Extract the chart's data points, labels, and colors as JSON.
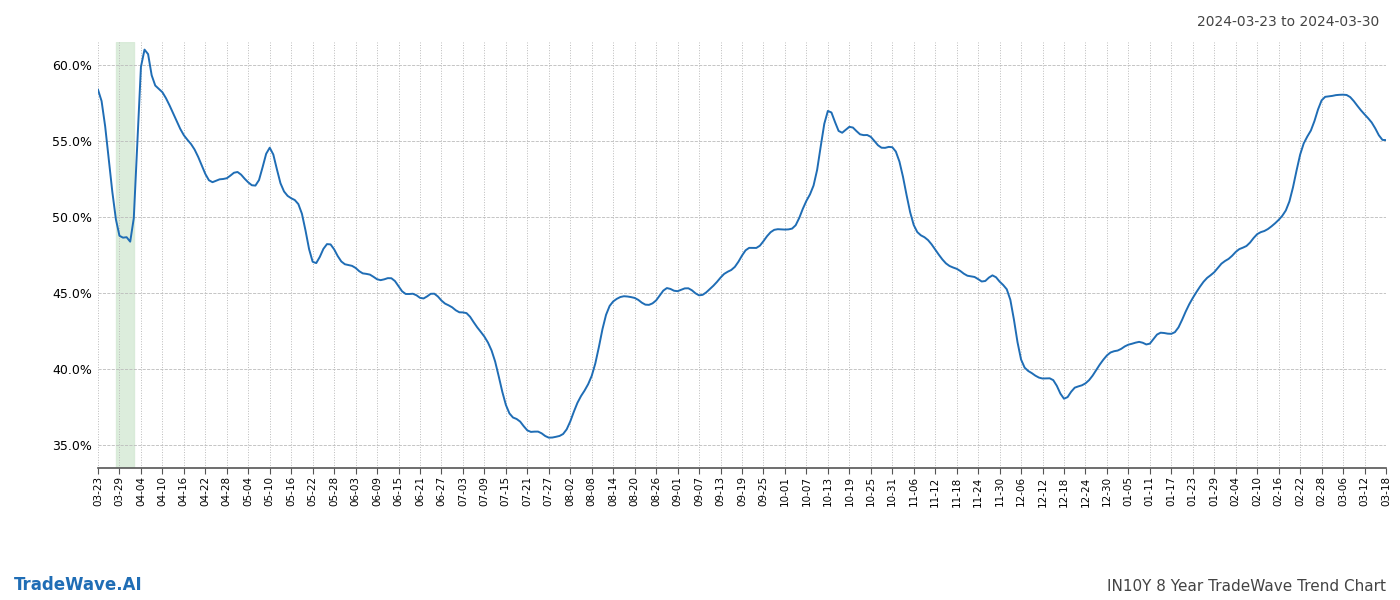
{
  "title_top_right": "2024-03-23 to 2024-03-30",
  "title_bottom_right": "IN10Y 8 Year TradeWave Trend Chart",
  "title_bottom_left": "TradeWave.AI",
  "line_color": "#1f6db5",
  "line_width": 1.4,
  "background_color": "#ffffff",
  "grid_color": "#bbbbbb",
  "highlight_color": "#d6ead6",
  "ylim": [
    0.335,
    0.615
  ],
  "yticks": [
    0.35,
    0.4,
    0.45,
    0.5,
    0.55,
    0.6
  ],
  "ytick_labels": [
    "35.0%",
    "40.0%",
    "45.0%",
    "50.0%",
    "55.0%",
    "60.0%"
  ]
}
